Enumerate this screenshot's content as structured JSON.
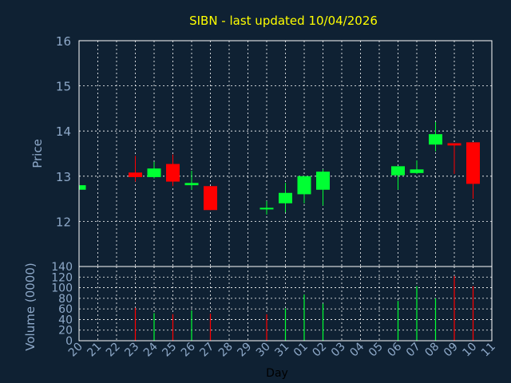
{
  "colors": {
    "background": "#0f2133",
    "title": "#ffff00",
    "axis_text": "#8ea9c9",
    "frame": "#ffffff",
    "grid": "#ffffff",
    "up": "#00ff33",
    "down": "#ff0000"
  },
  "chart_data": [
    {
      "type": "candlestick",
      "title": "SIBN - last updated 10/04/2026",
      "ylabel": "Price",
      "ylim": [
        11,
        16
      ],
      "yticks": [
        11,
        12,
        13,
        14,
        15,
        16
      ],
      "ytick_labels": [
        "",
        "12",
        "13",
        "14",
        "15",
        "16"
      ],
      "grid": true,
      "categories": [
        "20",
        "21",
        "22",
        "23",
        "24",
        "25",
        "26",
        "27",
        "28",
        "29",
        "30",
        "31",
        "01",
        "02",
        "03",
        "04",
        "05",
        "06",
        "07",
        "08",
        "09",
        "10",
        "11"
      ],
      "candles": [
        {
          "day": "20",
          "open": 12.7,
          "high": 12.8,
          "low": 12.7,
          "close": 12.8
        },
        {
          "day": "23",
          "open": 13.08,
          "high": 13.45,
          "low": 12.88,
          "close": 12.98
        },
        {
          "day": "24",
          "open": 12.98,
          "high": 13.32,
          "low": 12.95,
          "close": 13.17
        },
        {
          "day": "25",
          "open": 13.27,
          "high": 13.48,
          "low": 12.78,
          "close": 12.88
        },
        {
          "day": "26",
          "open": 12.8,
          "high": 13.12,
          "low": 12.7,
          "close": 12.85
        },
        {
          "day": "27",
          "open": 12.78,
          "high": 12.78,
          "low": 12.25,
          "close": 12.25
        },
        {
          "day": "30",
          "open": 12.3,
          "high": 12.45,
          "low": 12.15,
          "close": 12.3
        },
        {
          "day": "31",
          "open": 12.4,
          "high": 12.85,
          "low": 12.2,
          "close": 12.63
        },
        {
          "day": "01",
          "open": 12.6,
          "high": 13.0,
          "low": 12.4,
          "close": 13.0
        },
        {
          "day": "02",
          "open": 12.7,
          "high": 13.15,
          "low": 12.35,
          "close": 13.1
        },
        {
          "day": "06",
          "open": 13.02,
          "high": 13.22,
          "low": 12.7,
          "close": 13.22
        },
        {
          "day": "07",
          "open": 13.07,
          "high": 13.35,
          "low": 13.05,
          "close": 13.15
        },
        {
          "day": "08",
          "open": 13.7,
          "high": 14.2,
          "low": 13.55,
          "close": 13.93
        },
        {
          "day": "09",
          "open": 13.73,
          "high": 13.73,
          "low": 13.05,
          "close": 13.68
        },
        {
          "day": "10",
          "open": 13.75,
          "high": 13.75,
          "low": 12.5,
          "close": 12.83
        }
      ]
    },
    {
      "type": "bar",
      "xlabel": "Day",
      "ylabel": "Volume (0000)",
      "ylim": [
        0,
        140
      ],
      "yticks": [
        0,
        20,
        40,
        60,
        80,
        100,
        120,
        140
      ],
      "categories": [
        "20",
        "21",
        "22",
        "23",
        "24",
        "25",
        "26",
        "27",
        "28",
        "29",
        "30",
        "31",
        "01",
        "02",
        "03",
        "04",
        "05",
        "06",
        "07",
        "08",
        "09",
        "10",
        "11"
      ],
      "bars": [
        {
          "day": "23",
          "value": 62,
          "direction": "down"
        },
        {
          "day": "24",
          "value": 52,
          "direction": "up"
        },
        {
          "day": "25",
          "value": 50,
          "direction": "down"
        },
        {
          "day": "26",
          "value": 57,
          "direction": "up"
        },
        {
          "day": "27",
          "value": 51,
          "direction": "down"
        },
        {
          "day": "30",
          "value": 50,
          "direction": "down"
        },
        {
          "day": "31",
          "value": 61,
          "direction": "up"
        },
        {
          "day": "01",
          "value": 87,
          "direction": "up"
        },
        {
          "day": "02",
          "value": 70,
          "direction": "up"
        },
        {
          "day": "06",
          "value": 75,
          "direction": "up"
        },
        {
          "day": "07",
          "value": 103,
          "direction": "up"
        },
        {
          "day": "08",
          "value": 80,
          "direction": "up"
        },
        {
          "day": "09",
          "value": 122,
          "direction": "down"
        },
        {
          "day": "10",
          "value": 103,
          "direction": "down"
        }
      ]
    }
  ]
}
